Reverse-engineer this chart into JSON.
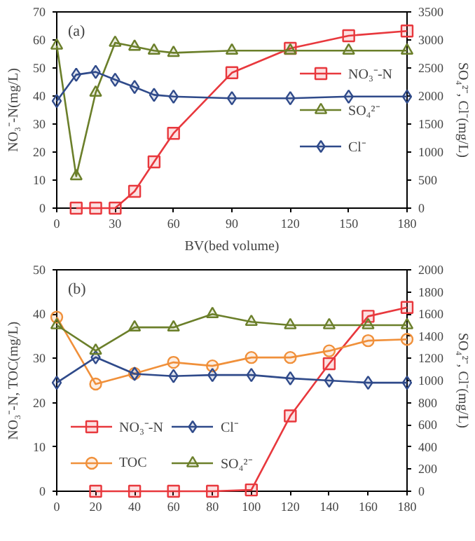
{
  "chart_data": [
    {
      "type": "line",
      "annotations": [
        "(a)"
      ],
      "xlabel": "BV(bed volume)",
      "ylabel": "NO₃⁻-N(mg/L)",
      "y2label": "SO₄²⁻, Cl⁻(mg/L)",
      "xlim": [
        0,
        180
      ],
      "xticks": [
        0,
        30,
        60,
        90,
        120,
        150,
        180
      ],
      "ylim": [
        0,
        70
      ],
      "yticks": [
        0,
        10,
        20,
        30,
        40,
        50,
        60,
        70
      ],
      "y2lim": [
        0,
        3500
      ],
      "y2ticks": [
        0,
        500,
        1000,
        1500,
        2000,
        2500,
        3000,
        3500
      ],
      "legend": "right",
      "series": [
        {
          "name": "NO₃⁻-N",
          "color": "#e8383d",
          "marker": "square",
          "x": [
            10,
            20,
            30,
            40,
            50,
            60,
            90,
            120,
            150,
            180
          ],
          "values": [
            0,
            0,
            0,
            6,
            16.5,
            26.7,
            48.3,
            57,
            61.5,
            63.2
          ]
        },
        {
          "name": "SO₄²⁻",
          "color": "#6b7f2a",
          "marker": "triangle",
          "axis": "y2",
          "x": [
            0,
            10,
            20,
            30,
            40,
            50,
            60,
            90,
            120,
            150,
            180
          ],
          "values": [
            2900,
            570,
            2060,
            2950,
            2880,
            2810,
            2770,
            2810,
            2810,
            2810,
            2810
          ]
        },
        {
          "name": "Cl⁻",
          "color": "#2f4a8a",
          "marker": "diamond",
          "axis": "y2",
          "x": [
            0,
            10,
            20,
            30,
            40,
            50,
            60,
            90,
            120,
            150,
            180
          ],
          "values": [
            1910,
            2380,
            2430,
            2290,
            2160,
            2020,
            1990,
            1960,
            1960,
            1990,
            1990
          ]
        }
      ]
    },
    {
      "type": "line",
      "annotations": [
        "(b)"
      ],
      "ylabel": "NO₃⁻-N, TOC(mg/L)",
      "y2label": "SO₄²⁻, Cl⁻(mg/L)",
      "xlim": [
        0,
        180
      ],
      "xticks": [
        0,
        20,
        40,
        60,
        80,
        100,
        120,
        140,
        160,
        180
      ],
      "ylim": [
        0,
        50
      ],
      "yticks": [
        0,
        10,
        20,
        30,
        40,
        50
      ],
      "y2lim": [
        0,
        2000
      ],
      "y2ticks": [
        0,
        200,
        400,
        600,
        800,
        1000,
        1200,
        1400,
        1600,
        1800,
        2000
      ],
      "legend": "bottom left",
      "series": [
        {
          "name": "NO₃⁻-N",
          "color": "#e8383d",
          "marker": "square",
          "x": [
            20,
            40,
            60,
            80,
            100,
            120,
            140,
            160,
            180
          ],
          "values": [
            0,
            0,
            0,
            0,
            0.3,
            17,
            28.8,
            39.5,
            41.5
          ]
        },
        {
          "name": "TOC",
          "color": "#f0903a",
          "marker": "circle",
          "x": [
            0,
            20,
            40,
            60,
            80,
            100,
            120,
            140,
            160,
            180
          ],
          "values": [
            39.3,
            24.2,
            26.6,
            29.1,
            28.3,
            30.2,
            30.2,
            31.7,
            34,
            34.3
          ]
        },
        {
          "name": "Cl⁻",
          "color": "#2f4a8a",
          "marker": "diamond",
          "axis": "y2",
          "x": [
            0,
            20,
            40,
            60,
            80,
            100,
            120,
            140,
            160,
            180
          ],
          "values": [
            980,
            1210,
            1060,
            1040,
            1050,
            1050,
            1020,
            1000,
            980,
            980
          ]
        },
        {
          "name": "SO₄²⁻",
          "color": "#6b7f2a",
          "marker": "triangle",
          "axis": "y2",
          "x": [
            0,
            20,
            40,
            60,
            80,
            100,
            120,
            140,
            160,
            180
          ],
          "values": [
            1500,
            1270,
            1480,
            1480,
            1600,
            1530,
            1500,
            1500,
            1500,
            1500
          ]
        }
      ]
    }
  ]
}
